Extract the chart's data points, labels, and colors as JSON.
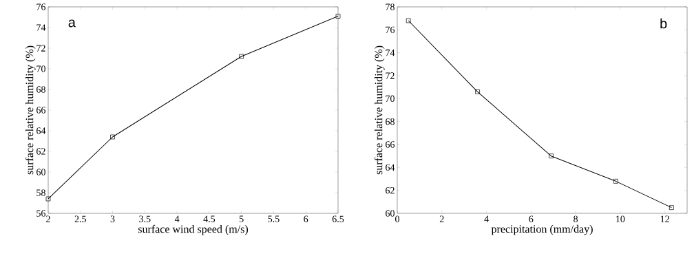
{
  "chart_data": [
    {
      "type": "line",
      "xlabel": "surface wind speed (m/s)",
      "ylabel": "surface relative humidity (%)",
      "annotations": [
        "a"
      ],
      "marker": "square",
      "color": "#000000",
      "x": [
        2,
        3,
        5,
        6.5
      ],
      "values": [
        57.4,
        63.4,
        71.2,
        75.1
      ],
      "xlim": [
        2,
        6.5
      ],
      "xticks": [
        2,
        2.5,
        3,
        3.5,
        4,
        4.5,
        5,
        5.5,
        6,
        6.5
      ],
      "ylim": [
        56,
        76
      ],
      "yticks": [
        56,
        58,
        60,
        62,
        64,
        66,
        68,
        70,
        72,
        74,
        76
      ]
    },
    {
      "type": "line",
      "xlabel": "precipitation (mm/day)",
      "ylabel": "surface relative humidity (%)",
      "annotations": [
        "b"
      ],
      "marker": "square",
      "color": "#000000",
      "x": [
        0.5,
        3.6,
        6.9,
        9.8,
        12.3
      ],
      "values": [
        76.8,
        70.6,
        65.0,
        62.8,
        60.5
      ],
      "xlim": [
        0,
        13
      ],
      "xticks": [
        0,
        2,
        4,
        6,
        8,
        10,
        12
      ],
      "ylim": [
        60,
        78
      ],
      "yticks": [
        60,
        62,
        64,
        66,
        68,
        70,
        72,
        74,
        76,
        78
      ]
    }
  ]
}
